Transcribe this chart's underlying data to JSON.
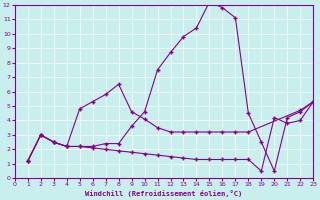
{
  "bg_color": "#c8eeee",
  "line_color": "#880088",
  "xlim": [
    0,
    23
  ],
  "ylim": [
    0,
    12
  ],
  "xticks": [
    0,
    1,
    2,
    3,
    4,
    5,
    6,
    7,
    8,
    9,
    10,
    11,
    12,
    13,
    14,
    15,
    16,
    17,
    18,
    19,
    20,
    21,
    22,
    23
  ],
  "yticks": [
    0,
    1,
    2,
    3,
    4,
    5,
    6,
    7,
    8,
    9,
    10,
    11,
    12
  ],
  "xlabel": "Windchill (Refroidissement éolien,°C)",
  "line1_x": [
    1,
    2,
    3,
    4,
    5,
    6,
    7,
    8,
    9,
    10,
    11,
    12,
    13,
    14,
    15,
    16,
    17,
    18,
    19,
    20,
    21,
    22,
    23
  ],
  "line1_y": [
    1.2,
    3.0,
    2.5,
    2.2,
    2.2,
    2.2,
    2.4,
    2.4,
    3.6,
    4.6,
    7.5,
    8.7,
    9.8,
    10.4,
    12.2,
    11.8,
    11.1,
    4.5,
    2.5,
    0.5,
    4.2,
    4.6,
    5.3
  ],
  "line2_x": [
    1,
    2,
    3,
    4,
    5,
    6,
    7,
    8,
    9,
    10,
    11,
    12,
    13,
    14,
    15,
    16,
    17,
    18,
    22,
    23
  ],
  "line2_y": [
    1.2,
    3.0,
    2.5,
    2.2,
    4.8,
    5.3,
    5.8,
    6.5,
    4.6,
    4.1,
    3.5,
    3.2,
    3.2,
    3.2,
    3.2,
    3.2,
    3.2,
    3.2,
    4.7,
    5.3
  ],
  "line3_x": [
    1,
    2,
    3,
    4,
    5,
    6,
    7,
    8,
    9,
    10,
    11,
    12,
    13,
    14,
    15,
    16,
    17,
    18,
    19,
    20,
    21,
    22,
    23
  ],
  "line3_y": [
    1.2,
    3.0,
    2.5,
    2.2,
    2.2,
    2.1,
    2.0,
    1.9,
    1.8,
    1.7,
    1.6,
    1.5,
    1.4,
    1.3,
    1.3,
    1.3,
    1.3,
    1.3,
    0.5,
    4.2,
    3.8,
    4.0,
    5.3
  ]
}
